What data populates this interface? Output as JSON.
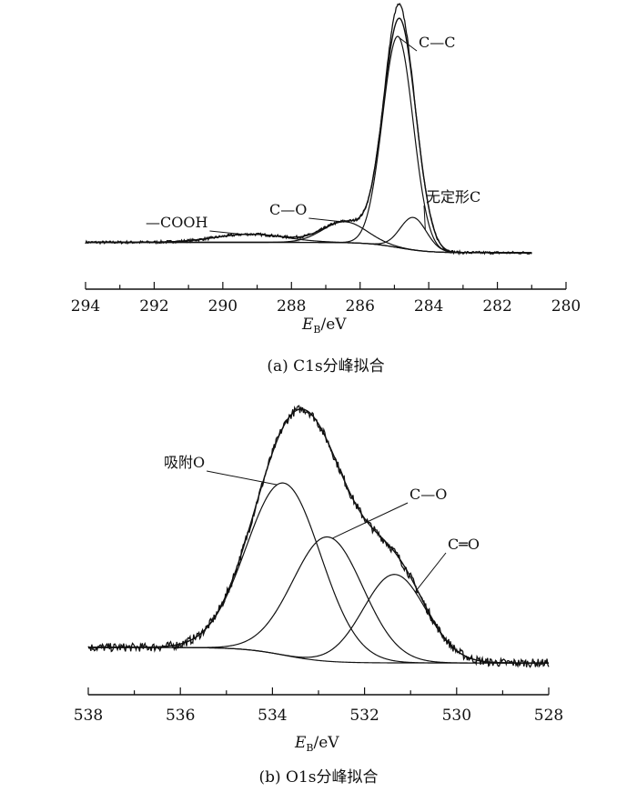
{
  "chart_data": [
    {
      "type": "line",
      "caption": "(a) C1s分峰拟合",
      "xlabel_main": "E",
      "xlabel_sub": "B",
      "xlabel_unit": "/eV",
      "xlim": [
        294,
        280
      ],
      "x_ticks": [
        294,
        292,
        290,
        288,
        286,
        284,
        282,
        280
      ],
      "x_range_data": [
        294,
        281
      ],
      "ylim": [
        0,
        1.05
      ],
      "y_axis_visible": false,
      "background": {
        "type": "shirley",
        "start": 0.045,
        "end": 0.0
      },
      "components": [
        {
          "name": "C—C",
          "center": 284.9,
          "height": 0.91,
          "fwhm": 1.05
        },
        {
          "name": "无定形C",
          "center": 284.45,
          "height": 0.14,
          "fwhm": 0.9
        },
        {
          "name": "C—O",
          "center": 286.45,
          "height": 0.09,
          "fwhm": 1.5
        },
        {
          "name": "—COOH",
          "center": 289.2,
          "height": 0.035,
          "fwhm": 2.4
        }
      ],
      "annotations": [
        {
          "text": "C—C",
          "anchor_x": 284.85,
          "anchor_comp": 0
        },
        {
          "text": "无定形C",
          "anchor_x": 284.1,
          "anchor_comp": 1
        },
        {
          "text": "C—O",
          "anchor_x": 286.5,
          "anchor_comp": 2
        },
        {
          "text": "—COOH",
          "anchor_x": 289.4,
          "anchor_comp": 3
        }
      ]
    },
    {
      "type": "line",
      "caption": "(b) O1s分峰拟合",
      "xlabel_main": "E",
      "xlabel_sub": "B",
      "xlabel_unit": "/eV",
      "xlim": [
        538,
        528
      ],
      "x_ticks": [
        538,
        536,
        534,
        532,
        530,
        528
      ],
      "x_range_data": [
        538,
        528
      ],
      "ylim": [
        0,
        1.05
      ],
      "y_axis_visible": false,
      "background": {
        "type": "shirley",
        "start": 0.0,
        "end": -0.065
      },
      "components": [
        {
          "name": "吸附O",
          "center": 533.75,
          "height": 0.72,
          "fwhm": 1.9
        },
        {
          "name": "C—O",
          "center": 532.8,
          "height": 0.52,
          "fwhm": 1.8
        },
        {
          "name": "C═O",
          "center": 531.35,
          "height": 0.37,
          "fwhm": 1.6
        }
      ],
      "annotations": [
        {
          "text": "吸附O",
          "anchor_x": 533.9,
          "anchor_comp": 0
        },
        {
          "text": "C—O",
          "anchor_x": 532.7,
          "anchor_comp": 1
        },
        {
          "text": "C═O",
          "anchor_x": 530.9,
          "anchor_comp": 2
        }
      ]
    }
  ]
}
